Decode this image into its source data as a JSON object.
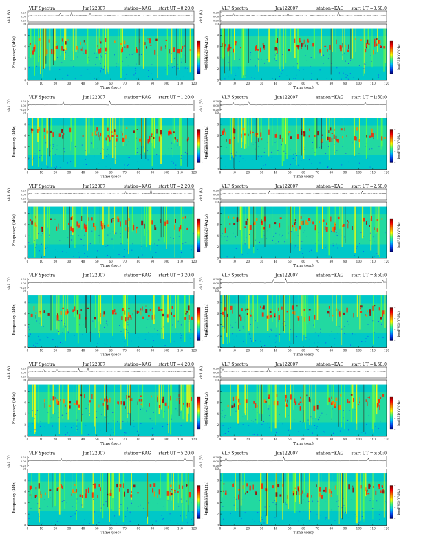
{
  "colors": {
    "background": "#00c8c8",
    "colormap": [
      "#000080",
      "#0050ff",
      "#00c8ff",
      "#40ff80",
      "#ffff00",
      "#ff8000",
      "#ff0000",
      "#800000"
    ]
  },
  "common": {
    "header_title": "VLF Spectra",
    "station": "station=KAG",
    "ch_label": "ch1 (V)",
    "y_label": "Frequency (kHz)",
    "x_label": "Time (sec)",
    "colorbar_label": "log(PSD)(V²/Hz)",
    "ch_ticks": [
      "0.20",
      "0.00",
      "-0.20"
    ],
    "y_ticks": [
      "0",
      "2",
      "4",
      "6",
      "8",
      "10"
    ],
    "x_ticks": [
      "0",
      "10",
      "20",
      "30",
      "40",
      "50",
      "60",
      "70",
      "80",
      "90",
      "100",
      "110",
      "120"
    ],
    "colorbar_ticks": [
      "-",
      "-",
      "-",
      "-"
    ]
  },
  "chart_data": [
    {
      "type": "heatmap",
      "date": "Jun122007",
      "start": "start UT =0:20:0",
      "ylim": [
        0,
        10
      ],
      "xlim": [
        0,
        120
      ],
      "ch_ylim": [
        -0.2,
        0.2
      ]
    },
    {
      "type": "heatmap",
      "date": "Jun122007",
      "start": "start UT =0:50:0",
      "ylim": [
        0,
        10
      ],
      "xlim": [
        0,
        120
      ],
      "ch_ylim": [
        -0.2,
        0.2
      ]
    },
    {
      "type": "heatmap",
      "date": "Jun122007",
      "start": "start UT =1:20:0",
      "ylim": [
        0,
        10
      ],
      "xlim": [
        0,
        120
      ],
      "ch_ylim": [
        -0.2,
        0.2
      ]
    },
    {
      "type": "heatmap",
      "date": "Jun122007",
      "start": "start UT =1:50:0",
      "ylim": [
        0,
        10
      ],
      "xlim": [
        0,
        120
      ],
      "ch_ylim": [
        -0.2,
        0.2
      ]
    },
    {
      "type": "heatmap",
      "date": "Jun122007",
      "start": "start UT =2:20:0",
      "ylim": [
        0,
        10
      ],
      "xlim": [
        0,
        120
      ],
      "ch_ylim": [
        -0.2,
        0.2
      ]
    },
    {
      "type": "heatmap",
      "date": "Jun122007",
      "start": "start UT =2:50:0",
      "ylim": [
        0,
        10
      ],
      "xlim": [
        0,
        120
      ],
      "ch_ylim": [
        -0.2,
        0.2
      ]
    },
    {
      "type": "heatmap",
      "date": "Jun122007",
      "start": "start UT =3:20:0",
      "ylim": [
        0,
        10
      ],
      "xlim": [
        0,
        120
      ],
      "ch_ylim": [
        -0.2,
        0.2
      ]
    },
    {
      "type": "heatmap",
      "date": "Jun122007",
      "start": "start UT =3:50:0",
      "ylim": [
        0,
        10
      ],
      "xlim": [
        0,
        120
      ],
      "ch_ylim": [
        -0.2,
        0.2
      ]
    },
    {
      "type": "heatmap",
      "date": "Jun122007",
      "start": "start UT =4:20:0",
      "ylim": [
        0,
        10
      ],
      "xlim": [
        0,
        120
      ],
      "ch_ylim": [
        -0.2,
        0.2
      ]
    },
    {
      "type": "heatmap",
      "date": "Jun122007",
      "start": "start UT =4:50:0",
      "ylim": [
        0,
        10
      ],
      "xlim": [
        0,
        120
      ],
      "ch_ylim": [
        -0.2,
        0.2
      ]
    },
    {
      "type": "heatmap",
      "date": "Jun122007",
      "start": "start UT =5:20:0",
      "ylim": [
        0,
        10
      ],
      "xlim": [
        0,
        120
      ],
      "ch_ylim": [
        -0.2,
        0.2
      ]
    },
    {
      "type": "heatmap",
      "date": "Jun122007",
      "start": "start UT =5:50:0",
      "ylim": [
        0,
        10
      ],
      "xlim": [
        0,
        120
      ],
      "ch_ylim": [
        -0.2,
        0.2
      ]
    }
  ]
}
